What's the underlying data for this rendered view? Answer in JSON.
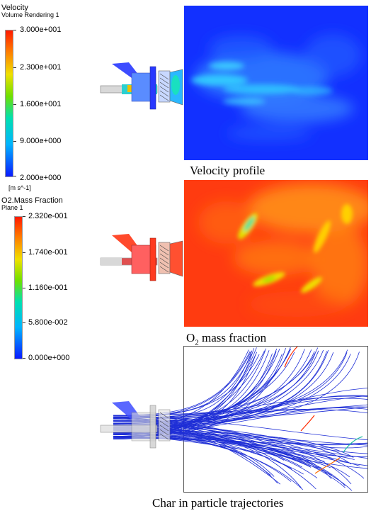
{
  "velocity_legend": {
    "title": "Velocity",
    "subtitle": "Volume Rendering 1",
    "ticks": [
      "3.000e+001",
      "2.300e+001",
      "1.600e+001",
      "9.000e+000",
      "2.000e+000"
    ],
    "unit": "[m s^-1]",
    "range": [
      2.0,
      30.0
    ]
  },
  "o2_legend": {
    "title": "O2.Mass Fraction",
    "subtitle": "Plane 1",
    "ticks": [
      "2.320e-001",
      "1.740e-001",
      "1.160e-001",
      "5.800e-002",
      "0.000e+000"
    ],
    "range": [
      0.0,
      0.232
    ]
  },
  "captions": {
    "velocity": "Velocity profile",
    "o2_prefix": "O",
    "o2_subscript": "2",
    "o2_suffix": " mass fraction",
    "trajectories": "Char in particle trajectories"
  },
  "colors": {
    "colormap": [
      "#0a1aff",
      "#00b4ff",
      "#00e0b0",
      "#6fe000",
      "#f0e000",
      "#ff7a00",
      "#ff1a00"
    ],
    "velocity_background": "#1230ff",
    "o2_background": "#ff3b10",
    "trajectory_lines": "#1e2ed6"
  }
}
